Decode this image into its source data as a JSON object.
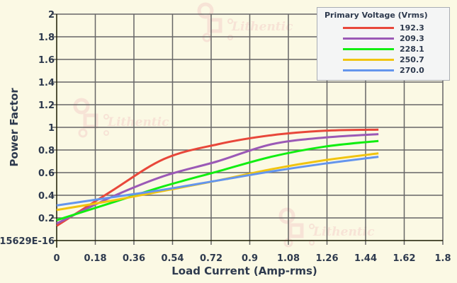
{
  "chart_data": {
    "type": "line",
    "title": "",
    "xlabel": "Load Current (Amp-rms)",
    "ylabel": "Power Factor",
    "xlim": [
      0,
      1.8
    ],
    "ylim": [
      0,
      2
    ],
    "x_ticks": [
      "0",
      "0.18",
      "0.36",
      "0.54",
      "0.72",
      "0.9",
      "1.08",
      "1.26",
      "1.44",
      "1.62",
      "1.8"
    ],
    "y_ticks": [
      "15629E-16",
      "0.2",
      "0.4",
      "0.6",
      "0.8",
      "1",
      "1.2",
      "1.4",
      "1.6",
      "1.8",
      "2"
    ],
    "grid": true,
    "legend": {
      "title": "Primary Voltage (Vrms)",
      "position": "top-right"
    },
    "x": [
      0,
      0.25,
      0.5,
      0.75,
      1.0,
      1.25,
      1.5
    ],
    "series": [
      {
        "name": "192.3",
        "color": "#e8473a",
        "values": [
          0.13,
          0.43,
          0.72,
          0.85,
          0.93,
          0.97,
          0.98
        ]
      },
      {
        "name": "209.3",
        "color": "#9b59b6",
        "values": [
          0.15,
          0.38,
          0.57,
          0.7,
          0.85,
          0.91,
          0.94
        ]
      },
      {
        "name": "228.1",
        "color": "#11ee11",
        "values": [
          0.18,
          0.33,
          0.48,
          0.61,
          0.74,
          0.83,
          0.88
        ]
      },
      {
        "name": "250.7",
        "color": "#f1c40f",
        "values": [
          0.27,
          0.35,
          0.44,
          0.53,
          0.63,
          0.71,
          0.77
        ]
      },
      {
        "name": "270.0",
        "color": "#6495ed",
        "values": [
          0.31,
          0.38,
          0.45,
          0.53,
          0.61,
          0.68,
          0.74
        ]
      }
    ]
  },
  "watermark": "Lithentic"
}
